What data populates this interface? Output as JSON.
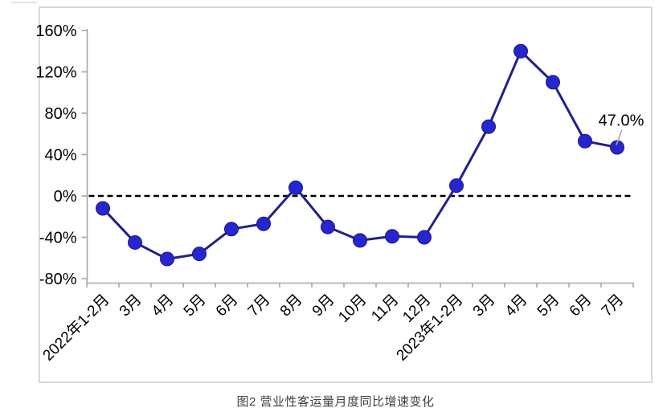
{
  "caption": "图2  营业性客运量月度同比增速变化",
  "chart_data": {
    "type": "line",
    "title": "图2 营业性客运量月度同比增速变化",
    "xlabel": "",
    "ylabel": "",
    "categories": [
      "2022年1-2月",
      "3月",
      "4月",
      "5月",
      "6月",
      "7月",
      "8月",
      "9月",
      "10月",
      "11月",
      "12月",
      "2023年1-2月",
      "3月",
      "4月",
      "5月",
      "6月",
      "7月"
    ],
    "series": [
      {
        "name": "营业性客运量月度同比增速",
        "values": [
          -12,
          -45,
          -61,
          -56,
          -32,
          -27,
          8,
          -30,
          -43,
          -39,
          -40,
          10,
          67,
          140,
          110,
          53,
          47
        ]
      }
    ],
    "ylim": [
      -80,
      160
    ],
    "yticks": [
      160,
      120,
      80,
      40,
      0,
      -40,
      -80
    ],
    "ytick_suffix": "%",
    "grid": false,
    "legend_position": "none",
    "zero_line_style": "dashed",
    "annotation": {
      "text": "47.0%",
      "index": 16
    },
    "colors": {
      "line": "#20208c",
      "marker_fill": "#2626cf",
      "marker_stroke": "#18188a",
      "axis": "#a6a6a6",
      "frame": "#d9d9d9",
      "zero_line": "#000000",
      "tick_label": "#000000",
      "annotation_text": "#000000",
      "annotation_leader": "#a9a9a9",
      "caption": "#404040"
    }
  }
}
